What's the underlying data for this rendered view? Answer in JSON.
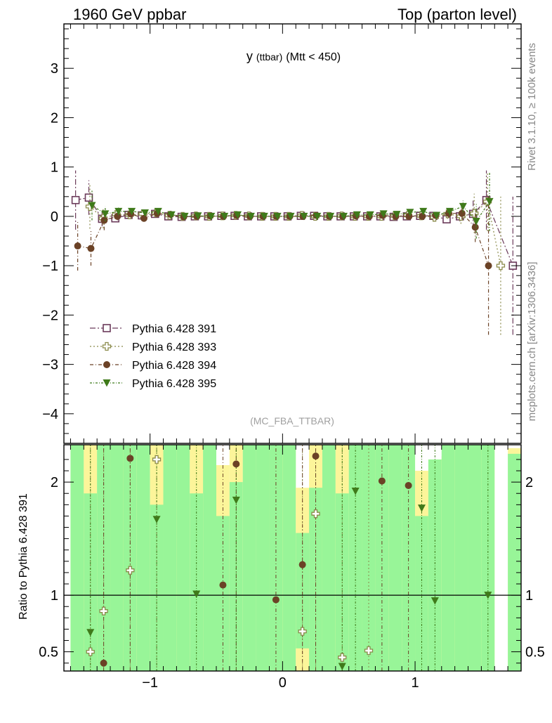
{
  "header": {
    "left": "1960 GeV ppbar",
    "right": "Top (parton level)"
  },
  "side_labels": {
    "rivet": "Rivet 3.1.10, ≥ 100k events",
    "mcplots": "mcplots.cern.ch [arXiv:1306.3436]"
  },
  "chart_data": [
    {
      "type": "scatter",
      "title_main": "y",
      "title_small": "(ttbar)",
      "title_rest": "(Mtt < 450)",
      "watermark": "(MC_FBA_TTBAR)",
      "xlim": [
        -1.65,
        1.8
      ],
      "ylim": [
        -4.6,
        3.9
      ],
      "yticks": [
        -4,
        -3,
        -2,
        -1,
        0,
        1,
        2,
        3
      ],
      "ytick_labels": [
        "−4",
        "−3",
        "−2",
        "−1",
        "0",
        "1",
        "2",
        "3"
      ],
      "x": [
        -1.55,
        -1.45,
        -1.35,
        -1.25,
        -1.15,
        -1.05,
        -0.95,
        -0.85,
        -0.75,
        -0.65,
        -0.55,
        -0.45,
        -0.35,
        -0.25,
        -0.15,
        -0.05,
        0.05,
        0.15,
        0.25,
        0.35,
        0.45,
        0.55,
        0.65,
        0.75,
        0.85,
        0.95,
        1.05,
        1.15,
        1.25,
        1.35,
        1.45,
        1.55,
        1.65,
        1.75
      ],
      "series": [
        {
          "name": "Pythia 6.428 391",
          "color": "#6b3a5a",
          "marker": "open-square",
          "values": [
            0.33,
            0.38,
            -0.05,
            -0.04,
            0.03,
            0.02,
            0.05,
            0.0,
            -0.01,
            0.0,
            0.0,
            0.01,
            0.01,
            0.0,
            0.0,
            0.0,
            0.0,
            0.01,
            0.01,
            0.0,
            0.0,
            0.0,
            0.0,
            0.0,
            -0.01,
            0.0,
            0.01,
            0.01,
            -0.06,
            0.0,
            0.05,
            0.33,
            null,
            -1.0
          ],
          "err": [
            0.6,
            0.35,
            0.15,
            0.08,
            0.06,
            0.05,
            0.05,
            0.04,
            0.04,
            0.04,
            0.03,
            0.03,
            0.03,
            0.03,
            0.03,
            0.03,
            0.03,
            0.03,
            0.03,
            0.03,
            0.03,
            0.03,
            0.04,
            0.04,
            0.04,
            0.05,
            0.05,
            0.06,
            0.08,
            0.1,
            0.3,
            0.6,
            null,
            1.4
          ]
        },
        {
          "name": "Pythia 6.428 393",
          "color": "#8a8a4a",
          "marker": "open-cross",
          "values": [
            null,
            0.2,
            -0.04,
            0.04,
            0.03,
            0.05,
            0.07,
            0.02,
            0.0,
            0.01,
            0.0,
            0.01,
            0.02,
            0.01,
            0.0,
            0.0,
            0.0,
            0.02,
            0.0,
            0.0,
            0.01,
            0.0,
            0.0,
            0.0,
            0.01,
            0.02,
            0.01,
            -0.02,
            0.05,
            0.0,
            0.06,
            0.3,
            -1.0,
            null
          ],
          "err": [
            null,
            0.45,
            0.2,
            0.1,
            0.07,
            0.06,
            0.05,
            0.05,
            0.04,
            0.04,
            0.03,
            0.03,
            0.03,
            0.03,
            0.03,
            0.03,
            0.03,
            0.03,
            0.03,
            0.03,
            0.03,
            0.03,
            0.04,
            0.04,
            0.04,
            0.05,
            0.06,
            0.07,
            0.1,
            0.15,
            0.4,
            0.6,
            1.4,
            null
          ]
        },
        {
          "name": "Pythia 6.428 394",
          "color": "#6b4226",
          "marker": "filled-circle",
          "values": [
            -0.6,
            -0.65,
            -0.08,
            0.0,
            0.05,
            -0.04,
            0.06,
            0.04,
            -0.01,
            0.0,
            0.01,
            0.0,
            0.02,
            0.0,
            0.0,
            0.0,
            0.0,
            0.0,
            0.02,
            0.0,
            0.0,
            0.01,
            0.0,
            0.02,
            0.0,
            0.0,
            0.0,
            0.02,
            0.06,
            0.06,
            -0.22,
            -1.0,
            null,
            null
          ],
          "err": [
            0.5,
            0.35,
            0.2,
            0.08,
            0.06,
            0.06,
            0.05,
            0.05,
            0.04,
            0.04,
            0.03,
            0.03,
            0.03,
            0.03,
            0.03,
            0.03,
            0.03,
            0.03,
            0.03,
            0.03,
            0.03,
            0.03,
            0.04,
            0.04,
            0.04,
            0.05,
            0.06,
            0.06,
            0.09,
            0.12,
            0.3,
            1.4,
            null,
            null
          ]
        },
        {
          "name": "Pythia 6.428 395",
          "color": "#3f7a1a",
          "marker": "filled-triangle-down",
          "values": [
            null,
            0.22,
            0.05,
            0.1,
            0.1,
            0.07,
            0.1,
            0.03,
            0.0,
            0.01,
            0.0,
            0.0,
            0.03,
            0.0,
            0.0,
            0.0,
            0.0,
            0.0,
            0.0,
            0.0,
            0.0,
            0.03,
            0.03,
            0.05,
            0.04,
            0.08,
            0.1,
            0.02,
            0.1,
            0.2,
            -0.1,
            0.3,
            null,
            null
          ],
          "err": [
            null,
            0.3,
            0.15,
            0.08,
            0.06,
            0.06,
            0.05,
            0.05,
            0.04,
            0.04,
            0.03,
            0.03,
            0.03,
            0.03,
            0.03,
            0.03,
            0.03,
            0.03,
            0.03,
            0.03,
            0.03,
            0.03,
            0.04,
            0.04,
            0.04,
            0.05,
            0.06,
            0.06,
            0.09,
            0.12,
            0.35,
            0.6,
            null,
            null
          ]
        }
      ]
    },
    {
      "type": "scatter",
      "ylabel": "Ratio to Pythia 6.428 391",
      "xlim": [
        -1.65,
        1.8
      ],
      "ylim": [
        0.33,
        2.33
      ],
      "yticks": [
        0.5,
        1,
        2
      ],
      "ytick_labels": [
        "0.5",
        "1",
        "2"
      ],
      "xticks": [
        -1,
        0,
        1
      ],
      "xtick_labels": [
        "−1",
        "0",
        "1"
      ],
      "reference": 1,
      "band_colors": {
        "stat": "#98f598",
        "total": "#fcf59a"
      },
      "band_bins": [
        -1.6,
        -1.5,
        -1.4,
        -1.3,
        -1.2,
        -1.1,
        -1.0,
        -0.9,
        -0.8,
        -0.7,
        -0.6,
        -0.5,
        -0.4,
        -0.3,
        -0.2,
        -0.1,
        0.0,
        0.1,
        0.2,
        0.3,
        0.4,
        0.5,
        0.6,
        0.7,
        0.8,
        0.9,
        1.0,
        1.1,
        1.2,
        1.3,
        1.4,
        1.5,
        1.6,
        1.7,
        1.8
      ],
      "band_green_top": [
        2.33,
        1.9,
        2.33,
        2.33,
        2.33,
        2.33,
        1.8,
        2.33,
        2.33,
        1.9,
        2.33,
        1.7,
        2.0,
        2.33,
        2.33,
        2.33,
        2.33,
        1.55,
        1.95,
        2.33,
        1.9,
        2.33,
        2.33,
        2.33,
        2.33,
        2.33,
        1.7,
        2.2,
        2.33,
        2.33,
        2.33,
        2.33,
        0.33,
        2.25
      ],
      "band_yellow_top": [
        2.33,
        2.33,
        2.33,
        2.33,
        2.33,
        2.33,
        2.33,
        2.33,
        2.33,
        2.33,
        2.33,
        2.15,
        2.33,
        2.33,
        2.33,
        2.33,
        2.33,
        1.95,
        2.33,
        2.33,
        2.33,
        2.33,
        2.33,
        2.33,
        2.33,
        2.33,
        2.1,
        2.2,
        2.23,
        2.33,
        2.33,
        2.33,
        0.33,
        2.3
      ],
      "band_yellow_bottom": [
        null,
        null,
        null,
        null,
        null,
        null,
        null,
        null,
        null,
        null,
        null,
        null,
        null,
        null,
        null,
        null,
        null,
        0.53,
        null,
        null,
        null,
        null,
        null,
        null,
        null,
        null,
        null,
        null,
        null,
        null,
        null,
        null,
        null,
        null
      ],
      "ratio_x": [
        -1.45,
        -1.35,
        -1.15,
        -0.95,
        -0.65,
        -0.45,
        -0.35,
        -0.05,
        0.15,
        0.25,
        0.45,
        0.55,
        0.65,
        0.75,
        0.95,
        1.05,
        1.15,
        1.55
      ],
      "ratio_series": [
        {
          "name": "Pythia 6.428 393",
          "values": [
            0.5,
            0.86,
            1.22,
            2.2,
            null,
            null,
            null,
            null,
            0.68,
            1.72,
            0.45,
            null,
            0.51,
            null,
            null,
            null,
            null,
            null
          ]
        },
        {
          "name": "Pythia 6.428 394",
          "values": [
            null,
            0.4,
            2.21,
            null,
            null,
            1.09,
            2.16,
            0.96,
            1.27,
            2.23,
            null,
            null,
            null,
            2.01,
            1.97,
            null,
            null,
            null
          ]
        },
        {
          "name": "Pythia 6.428 395",
          "values": [
            0.67,
            null,
            null,
            1.67,
            1.01,
            null,
            1.84,
            null,
            null,
            null,
            0.37,
            1.92,
            null,
            null,
            null,
            1.77,
            0.95,
            1.0
          ]
        }
      ]
    }
  ]
}
